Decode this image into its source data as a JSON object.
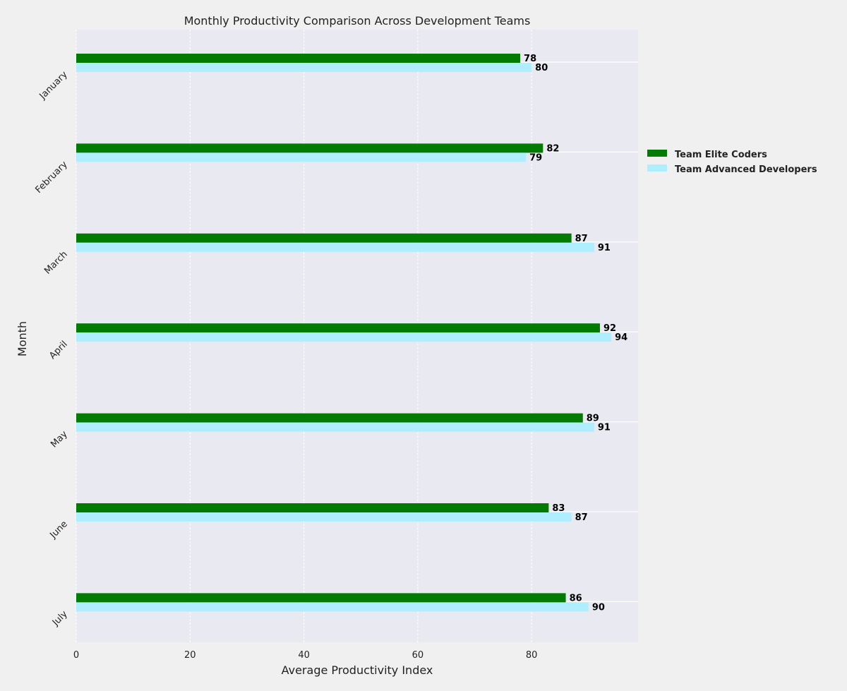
{
  "chart_data": {
    "type": "bar",
    "orientation": "horizontal",
    "title": "Monthly Productivity Comparison Across Development Teams",
    "xlabel": "Average Productivity Index",
    "ylabel": "Month",
    "categories": [
      "January",
      "February",
      "March",
      "April",
      "May",
      "June",
      "July"
    ],
    "series": [
      {
        "name": "Team Elite Coders",
        "color": "#037b03",
        "values": [
          78,
          82,
          87,
          92,
          89,
          83,
          86
        ]
      },
      {
        "name": "Team Advanced Developers",
        "color": "#aeeeff",
        "values": [
          80,
          79,
          91,
          94,
          91,
          87,
          90
        ]
      }
    ],
    "xlim": [
      0,
      98.7
    ],
    "xticks": [
      0,
      20,
      40,
      60,
      80
    ],
    "grid": true,
    "legend_position": "right"
  }
}
